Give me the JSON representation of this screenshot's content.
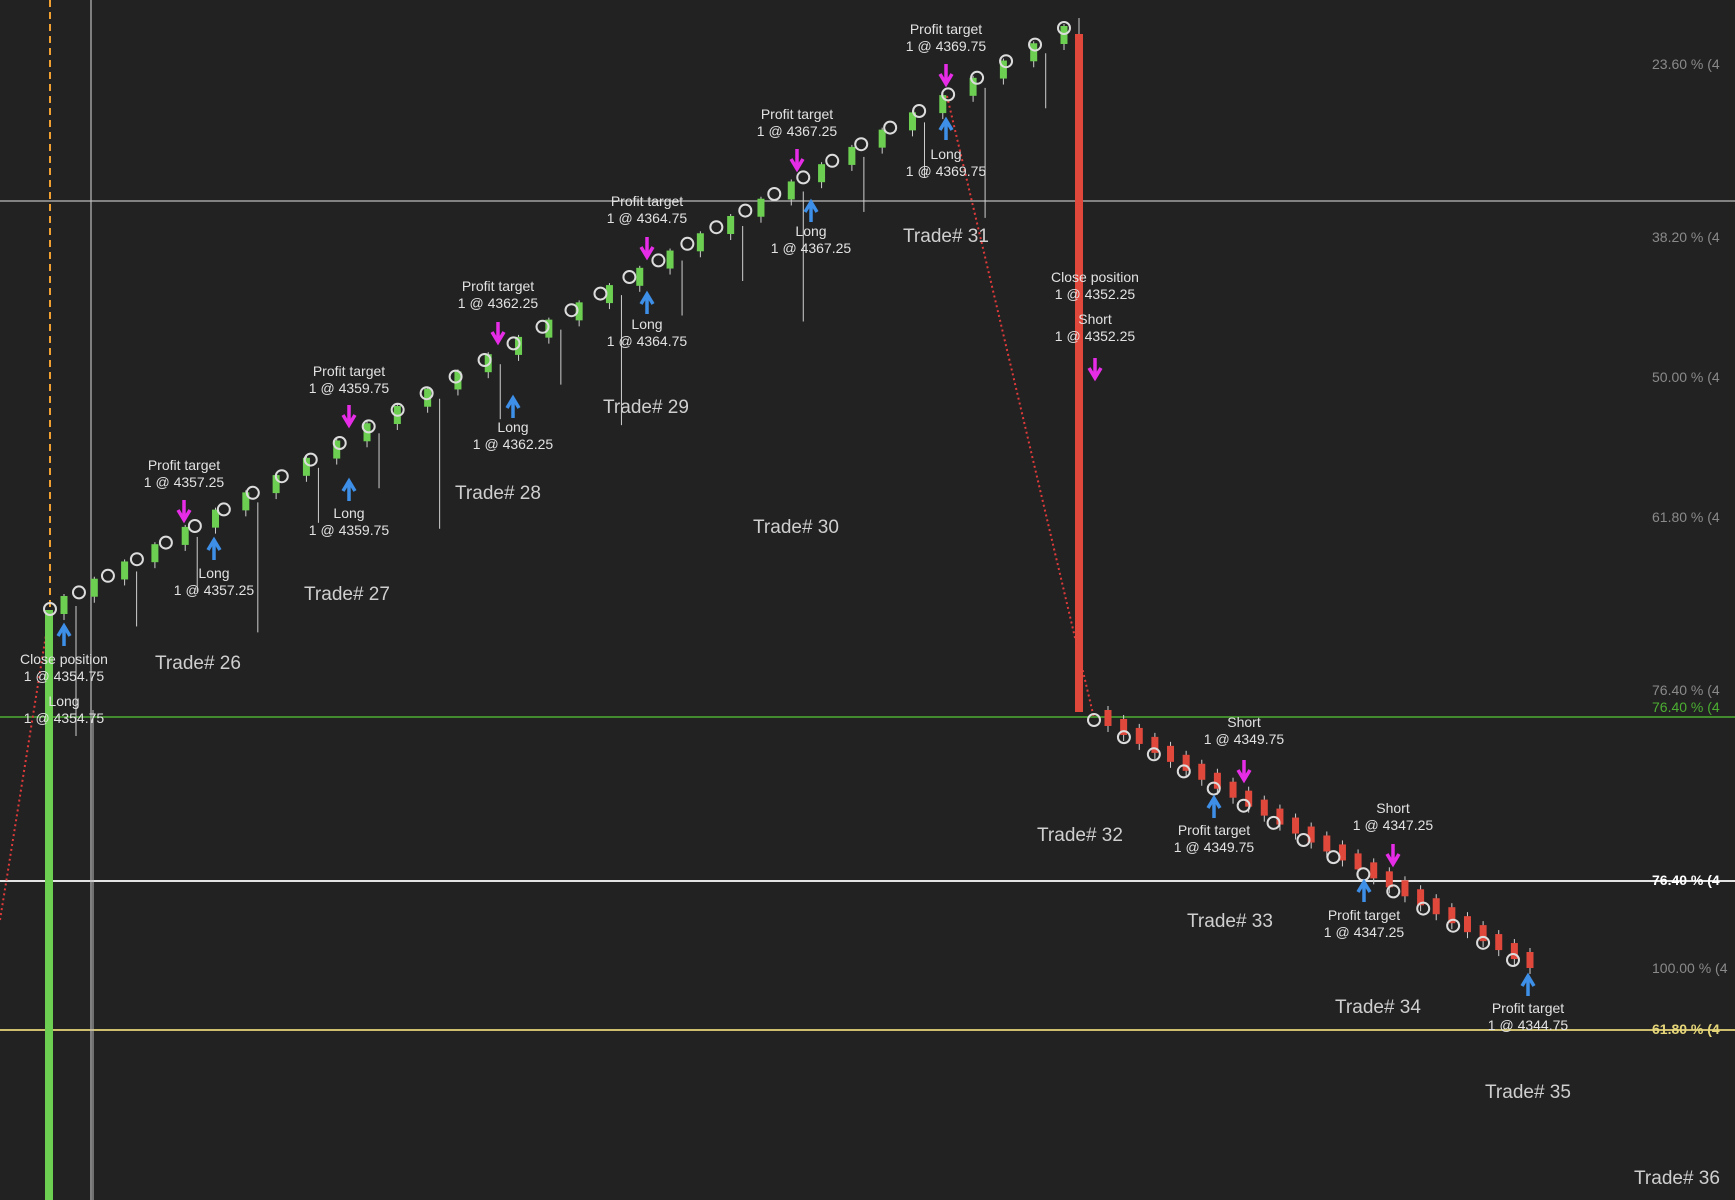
{
  "chart_data": {
    "type": "candlestick",
    "title": "",
    "xlabel": "",
    "ylabel": "",
    "colors": {
      "background": "#222222",
      "up_candle": "#6ccf52",
      "down_candle": "#e0483c",
      "entry_arrow_long": "#3d8fe8",
      "entry_arrow_short": "#e62ce6",
      "fill_marker": "#dcdcdc",
      "connector_line": "#e03a3a",
      "session_line": "#f0a030",
      "fib_green": "#4caf32",
      "fib_yellow": "#e6d67a"
    },
    "fib_levels": [
      {
        "label": "23.60 % (4",
        "color": "#8a8a8a"
      },
      {
        "label": "38.20 % (4",
        "color": "#8a8a8a"
      },
      {
        "label": "50.00 % (4",
        "color": "#8a8a8a"
      },
      {
        "label": "61.80 % (4",
        "color": "#8a8a8a"
      },
      {
        "label": "76.40 % (4",
        "color": "#8a8a8a"
      },
      {
        "label": "76.40 % (4",
        "color": "#4caf32"
      },
      {
        "label": "76.40 % (4",
        "color": "#ffffff"
      },
      {
        "label": "100.00 % (4",
        "color": "#8a8a8a"
      },
      {
        "label": "61.80 % (4",
        "color": "#e6d67a"
      }
    ],
    "annotations": [
      {
        "line1": "Close position",
        "line2": "1 @ 4354.75"
      },
      {
        "line1": "Long",
        "line2": "1 @ 4354.75"
      },
      {
        "line1": "Profit target",
        "line2": "1 @ 4357.25"
      },
      {
        "line1": "Long",
        "line2": "1 @ 4357.25"
      },
      {
        "line1": "Profit target",
        "line2": "1 @ 4359.75"
      },
      {
        "line1": "Long",
        "line2": "1 @ 4359.75"
      },
      {
        "line1": "Profit target",
        "line2": "1 @ 4362.25"
      },
      {
        "line1": "Long",
        "line2": "1 @ 4362.25"
      },
      {
        "line1": "Profit target",
        "line2": "1 @ 4364.75"
      },
      {
        "line1": "Long",
        "line2": "1 @ 4364.75"
      },
      {
        "line1": "Profit target",
        "line2": "1 @ 4367.25"
      },
      {
        "line1": "Long",
        "line2": "1 @ 4367.25"
      },
      {
        "line1": "Profit target",
        "line2": "1 @ 4369.75"
      },
      {
        "line1": "Long",
        "line2": "1 @ 4369.75"
      },
      {
        "line1": "Close position",
        "line2": "1 @ 4352.25"
      },
      {
        "line1": "Short",
        "line2": "1 @ 4352.25"
      },
      {
        "line1": "Short",
        "line2": "1 @ 4349.75"
      },
      {
        "line1": "Profit target",
        "line2": "1 @ 4349.75"
      },
      {
        "line1": "Short",
        "line2": "1 @ 4347.25"
      },
      {
        "line1": "Profit target",
        "line2": "1 @ 4347.25"
      },
      {
        "line1": "Profit target",
        "line2": "1 @ 4344.75"
      }
    ],
    "trades": [
      "Trade# 26",
      "Trade# 27",
      "Trade# 28",
      "Trade# 29",
      "Trade# 30",
      "Trade# 31",
      "Trade# 32",
      "Trade# 33",
      "Trade# 34",
      "Trade# 35",
      "Trade# 36"
    ]
  }
}
